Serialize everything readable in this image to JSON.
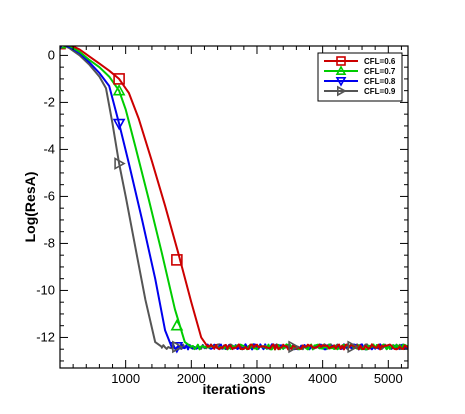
{
  "chart_data": {
    "type": "line",
    "title": "",
    "xlabel": "iterations",
    "ylabel": "Log(ResA)",
    "xlim": [
      0,
      5300
    ],
    "ylim": [
      -13.3,
      0.4
    ],
    "xticks": [
      1000,
      2000,
      3000,
      4000,
      5000
    ],
    "yticks": [
      0,
      -2,
      -4,
      -6,
      -8,
      -10,
      -12
    ],
    "legend_position": "top-right",
    "grid": false,
    "series": [
      {
        "name": "CFL=0.6",
        "color": "#cc0000",
        "marker": "square",
        "x": [
          0,
          150,
          300,
          450,
          600,
          750,
          900,
          1050,
          1200,
          1400,
          1600,
          1800,
          2000,
          2150,
          2250,
          2500,
          3000,
          3500,
          4000,
          4500,
          5000,
          5300
        ],
        "y": [
          0.5,
          0.45,
          0.25,
          -0.05,
          -0.35,
          -0.65,
          -1.0,
          -1.6,
          -2.7,
          -4.5,
          -6.4,
          -8.4,
          -10.5,
          -12.0,
          -12.4,
          -12.4,
          -12.4,
          -12.4,
          -12.4,
          -12.4,
          -12.4,
          -12.4
        ],
        "marker_x": [
          0,
          900,
          1780
        ],
        "marker_y": [
          0.5,
          -1.0,
          -8.7
        ]
      },
      {
        "name": "CFL=0.7",
        "color": "#00cc00",
        "marker": "triangle-up",
        "x": [
          0,
          150,
          300,
          450,
          600,
          750,
          900,
          1000,
          1150,
          1350,
          1550,
          1750,
          1900,
          2000,
          2500,
          3000,
          3500,
          4000,
          4500,
          5000,
          5300
        ],
        "y": [
          0.5,
          0.4,
          0.15,
          -0.2,
          -0.5,
          -0.9,
          -1.5,
          -2.3,
          -3.9,
          -6.1,
          -8.4,
          -10.8,
          -12.2,
          -12.4,
          -12.4,
          -12.4,
          -12.4,
          -12.4,
          -12.4,
          -12.4,
          -12.4
        ],
        "marker_x": [
          0,
          900,
          1780
        ],
        "marker_y": [
          0.5,
          -1.5,
          -11.5
        ]
      },
      {
        "name": "CFL=0.8",
        "color": "#0000ee",
        "marker": "triangle-down",
        "x": [
          0,
          150,
          300,
          450,
          600,
          750,
          900,
          1050,
          1250,
          1450,
          1600,
          1700,
          2000,
          2500,
          3000,
          3500,
          4000,
          4500,
          5000,
          5300
        ],
        "y": [
          0.5,
          0.35,
          0.1,
          -0.3,
          -0.75,
          -1.3,
          -2.9,
          -4.6,
          -7.0,
          -9.5,
          -11.7,
          -12.4,
          -12.4,
          -12.4,
          -12.4,
          -12.4,
          -12.4,
          -12.4,
          -12.4,
          -12.4
        ],
        "marker_x": [
          0,
          900,
          1780
        ],
        "marker_y": [
          0.5,
          -2.9,
          -12.4
        ]
      },
      {
        "name": "CFL=0.9",
        "color": "#555555",
        "marker": "triangle-right",
        "x": [
          0,
          150,
          300,
          450,
          600,
          700,
          800,
          900,
          1000,
          1150,
          1300,
          1450,
          1550,
          2000,
          2500,
          3000,
          3500,
          4000,
          4500,
          5000,
          5300
        ],
        "y": [
          0.5,
          0.3,
          0.0,
          -0.4,
          -0.9,
          -1.4,
          -2.9,
          -4.6,
          -6.0,
          -8.2,
          -10.4,
          -12.2,
          -12.4,
          -12.4,
          -12.4,
          -12.4,
          -12.4,
          -12.4,
          -12.4,
          -12.4,
          -12.4
        ],
        "marker_x": [
          0,
          900,
          1780,
          3550,
          4450
        ],
        "marker_y": [
          0.5,
          -4.6,
          -12.4,
          -12.4,
          -12.4
        ]
      }
    ]
  }
}
